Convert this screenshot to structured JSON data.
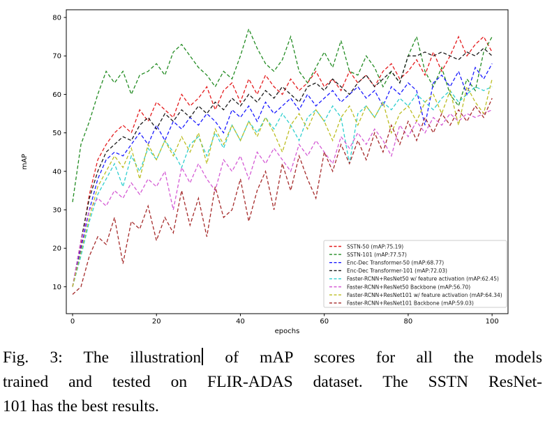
{
  "figure": {
    "caption": {
      "line1_before_cursor": "Fig. 3: The illustration",
      "line1_after_cursor": " of mAP scores for all the models",
      "line2": "trained and tested on FLIR-ADAS dataset. The SSTN ResNet-",
      "line3": "101 has the best results."
    }
  },
  "chart_data": {
    "type": "line",
    "title": "",
    "xlabel": "epochs",
    "ylabel": "mAP",
    "x_ticks": [
      0,
      20,
      40,
      60,
      80,
      100
    ],
    "y_ticks": [
      10,
      20,
      30,
      40,
      50,
      60,
      70,
      80
    ],
    "xlim": [
      -1.5,
      103.8
    ],
    "ylim": [
      3,
      82
    ],
    "grid": false,
    "legend_position": "lower right",
    "line_style": "dashed",
    "x": {
      "start": 0,
      "step": 2
    },
    "series": [
      {
        "name": "sstn-50",
        "label": "SSTN-50 (mAP:75.19)",
        "map": 75.19,
        "color": "#e41a1c",
        "values": [
          10,
          21,
          34,
          43,
          47,
          50,
          52,
          50,
          56,
          53,
          58,
          56,
          54,
          60,
          57,
          59,
          62,
          56,
          61,
          63,
          58,
          64,
          60,
          65,
          62,
          60,
          64,
          61,
          63,
          66,
          62,
          64,
          61,
          66,
          63,
          65,
          62,
          66,
          68,
          64,
          66,
          69,
          65,
          71,
          66,
          70,
          75,
          70,
          73,
          75,
          71
        ]
      },
      {
        "name": "sstn-101",
        "label": "SSTN-101 (mAP:77.57)",
        "map": 77.57,
        "color": "#228b22",
        "values": [
          32,
          47,
          53,
          60,
          66,
          63,
          66,
          60,
          65,
          66,
          68,
          65,
          71,
          73,
          70,
          67,
          65,
          62,
          66,
          64,
          70,
          77,
          72,
          68,
          66,
          69,
          75,
          66,
          63,
          67,
          71,
          67,
          74,
          66,
          65,
          70,
          67,
          62,
          66,
          63,
          70,
          75,
          66,
          62,
          67,
          60,
          57,
          64,
          61,
          71,
          75
        ]
      },
      {
        "name": "enc-dec-transformer-50",
        "label": "Enc-Dec Transformer-50 (mAP:68.77)",
        "map": 68.77,
        "color": "#1a1aff",
        "values": [
          10,
          20,
          30,
          38,
          43,
          45,
          44,
          47,
          50,
          47,
          52,
          48,
          53,
          51,
          54,
          52,
          55,
          53,
          50,
          56,
          54,
          57,
          53,
          58,
          55,
          57,
          59,
          56,
          60,
          57,
          59,
          61,
          58,
          60,
          62,
          59,
          61,
          57,
          62,
          60,
          63,
          61,
          52,
          63,
          65,
          62,
          66,
          60,
          67,
          64,
          68
        ]
      },
      {
        "name": "enc-dec-transformer-101",
        "label": "Enc-Dec Transformer-101 (mAP:72.03)",
        "map": 72.03,
        "color": "#1a1a1a",
        "values": [
          10,
          22,
          33,
          40,
          45,
          47,
          49,
          48,
          52,
          54,
          51,
          55,
          53,
          56,
          54,
          57,
          55,
          58,
          56,
          59,
          57,
          60,
          58,
          61,
          59,
          62,
          60,
          58,
          62,
          63,
          61,
          64,
          62,
          60,
          63,
          65,
          62,
          64,
          66,
          63,
          70,
          70,
          71,
          70,
          71,
          70,
          69,
          71,
          70,
          72,
          70
        ]
      },
      {
        "name": "faster-rcnn-resnet50-feature-activation",
        "label": "Faster-RCNN+ResNet50 w/ feature activation (mAP:62.45)",
        "map": 62.45,
        "color": "#2fcfcf",
        "values": [
          10,
          18,
          27,
          34,
          38,
          42,
          36,
          44,
          40,
          46,
          43,
          48,
          45,
          41,
          47,
          49,
          44,
          50,
          46,
          52,
          48,
          53,
          50,
          54,
          51,
          55,
          52,
          48,
          54,
          56,
          53,
          57,
          54,
          42,
          55,
          57,
          54,
          58,
          56,
          59,
          57,
          60,
          58,
          56,
          59,
          61,
          58,
          60,
          62,
          61,
          62
        ]
      },
      {
        "name": "faster-rcnn-resnet50-backbone",
        "label": "Faster-RCNN+ResNet50 Backbone (mAP:56.70)",
        "map": 56.7,
        "color": "#d45ad4",
        "values": [
          10,
          22,
          30,
          33,
          31,
          35,
          33,
          37,
          34,
          38,
          36,
          40,
          30,
          41,
          37,
          42,
          38,
          35,
          43,
          40,
          44,
          38,
          45,
          42,
          46,
          43,
          40,
          47,
          44,
          48,
          45,
          42,
          49,
          46,
          50,
          47,
          51,
          48,
          44,
          52,
          49,
          53,
          50,
          54,
          52,
          55,
          53,
          55,
          54,
          55,
          56
        ]
      },
      {
        "name": "faster-rcnn-resnet101-feature-activation",
        "label": "Faster-RCNN+ResNet101 w/ feature activation (mAP:64.34)",
        "map": 64.34,
        "color": "#bcbd22",
        "values": [
          10,
          19,
          28,
          36,
          40,
          44,
          41,
          46,
          38,
          47,
          43,
          48,
          44,
          49,
          45,
          50,
          42,
          51,
          47,
          52,
          48,
          53,
          49,
          54,
          50,
          45,
          52,
          55,
          51,
          56,
          53,
          48,
          54,
          57,
          52,
          57,
          54,
          58,
          50,
          55,
          57,
          53,
          58,
          60,
          55,
          61,
          52,
          62,
          58,
          55,
          64
        ]
      },
      {
        "name": "faster-rcnn-resnet101-backbone",
        "label": "Faster-RCNN+ResNet101 Backbone (mAP:59.03)",
        "map": 59.03,
        "color": "#a52a2a",
        "values": [
          8,
          10,
          18,
          23,
          21,
          28,
          16,
          27,
          25,
          31,
          22,
          28,
          24,
          35,
          26,
          33,
          23,
          36,
          28,
          30,
          38,
          27,
          35,
          40,
          30,
          42,
          35,
          44,
          38,
          33,
          45,
          40,
          47,
          42,
          48,
          43,
          50,
          45,
          52,
          47,
          53,
          48,
          54,
          50,
          55,
          52,
          56,
          53,
          57,
          54,
          59
        ]
      }
    ]
  }
}
